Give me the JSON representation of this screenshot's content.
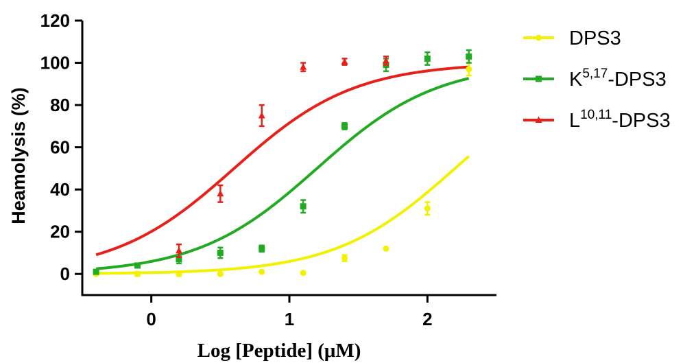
{
  "chart_data": {
    "type": "scatter",
    "title": "",
    "xlabel": "Log [Peptide] (μM)",
    "ylabel": "Heamolysis (%)",
    "xlim": [
      -0.5,
      2.5
    ],
    "ylim": [
      -10,
      120
    ],
    "xticks": [
      "0",
      "1",
      "2"
    ],
    "xtick_values": [
      0,
      1,
      2
    ],
    "yticks": [
      "0",
      "20",
      "40",
      "60",
      "80",
      "100",
      "120"
    ],
    "ytick_values": [
      0,
      20,
      40,
      60,
      80,
      100,
      120
    ],
    "grid": false,
    "legend_position": "right",
    "series": [
      {
        "legend_base": "DPS3",
        "legend_sup": "",
        "legend_suffix": "",
        "color": "#f2f200",
        "marker": "circle",
        "points": [
          {
            "x": -0.4,
            "y": 0,
            "err": 0.5
          },
          {
            "x": -0.1,
            "y": 0,
            "err": 1
          },
          {
            "x": 0.2,
            "y": 0,
            "err": 1
          },
          {
            "x": 0.5,
            "y": 0,
            "err": 0.5
          },
          {
            "x": 0.8,
            "y": 1,
            "err": 0.5
          },
          {
            "x": 1.1,
            "y": 0.5,
            "err": 0.5
          },
          {
            "x": 1.4,
            "y": 7.5,
            "err": 1.5
          },
          {
            "x": 1.7,
            "y": 12,
            "err": 0.5
          },
          {
            "x": 2.0,
            "y": 31,
            "err": 3
          },
          {
            "x": 2.3,
            "y": 97,
            "err": 3
          }
        ],
        "fit": {
          "bottom": 0,
          "top": 100,
          "logec50": 2.2,
          "hill": 1
        }
      },
      {
        "legend_base": "K",
        "legend_sup": "5,17",
        "legend_suffix": "-DPS3",
        "color": "#22aa22",
        "marker": "square",
        "points": [
          {
            "x": -0.4,
            "y": 1,
            "err": 1
          },
          {
            "x": -0.1,
            "y": 4,
            "err": 1
          },
          {
            "x": 0.2,
            "y": 7,
            "err": 2
          },
          {
            "x": 0.5,
            "y": 10,
            "err": 2.5
          },
          {
            "x": 0.8,
            "y": 12,
            "err": 1.5
          },
          {
            "x": 1.1,
            "y": 32,
            "err": 3
          },
          {
            "x": 1.4,
            "y": 70,
            "err": 1.5
          },
          {
            "x": 1.7,
            "y": 99,
            "err": 3
          },
          {
            "x": 2.0,
            "y": 102,
            "err": 3
          },
          {
            "x": 2.3,
            "y": 103,
            "err": 3
          }
        ],
        "fit": {
          "bottom": 0,
          "top": 100,
          "logec50": 1.2,
          "hill": 1
        }
      },
      {
        "legend_base": "L",
        "legend_sup": "10,11",
        "legend_suffix": "-DPS3",
        "color": "#e8201a",
        "marker": "triangle",
        "points": [
          {
            "x": 0.2,
            "y": 11,
            "err": 3
          },
          {
            "x": 0.5,
            "y": 38,
            "err": 4
          },
          {
            "x": 0.8,
            "y": 75,
            "err": 5
          },
          {
            "x": 1.1,
            "y": 98,
            "err": 2
          },
          {
            "x": 1.4,
            "y": 100.5,
            "err": 1.5
          },
          {
            "x": 1.7,
            "y": 101,
            "err": 2
          }
        ],
        "fit": {
          "bottom": 0,
          "top": 100,
          "logec50": 0.6,
          "hill": 1
        }
      }
    ]
  }
}
